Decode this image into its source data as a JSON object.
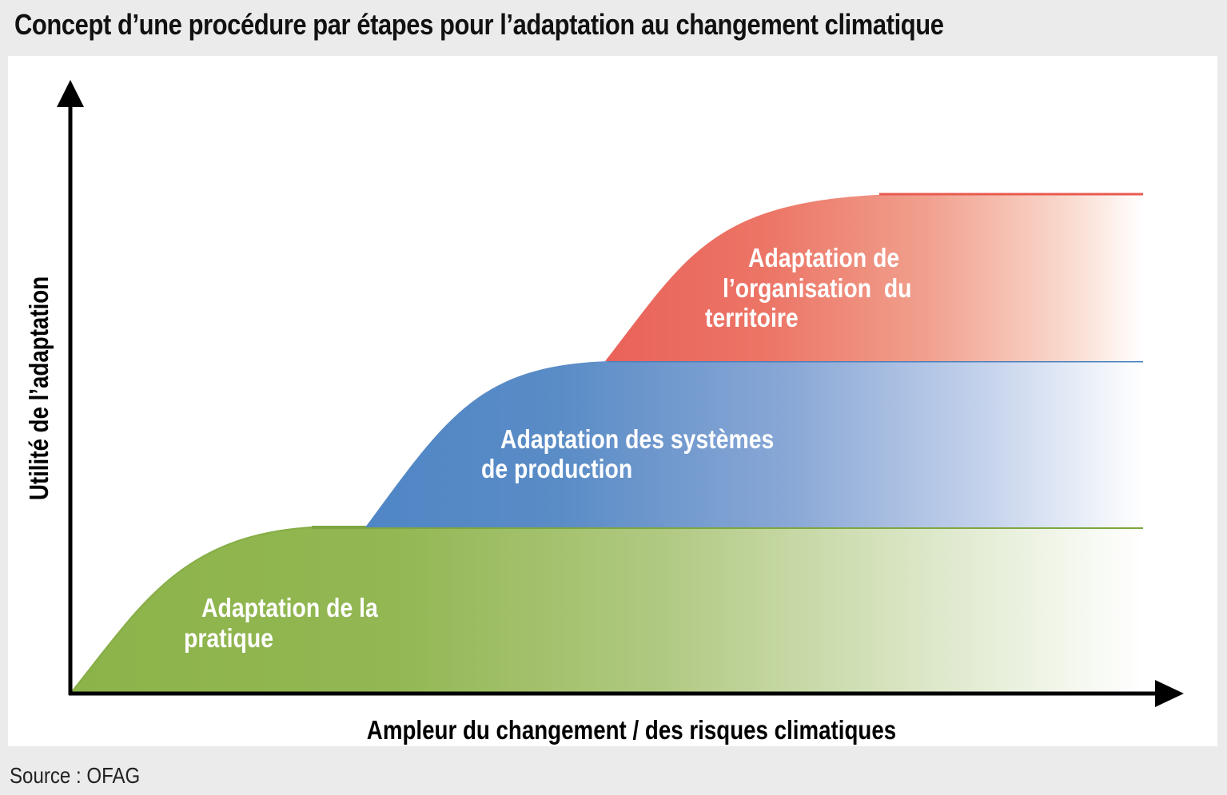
{
  "title": "Concept d’une procédure par étapes pour l’adaptation au changement climatique",
  "source": "Source : OFAG",
  "axes": {
    "y_label": "Utilité de l’adaptation",
    "x_label": "Ampleur du changement / des risques climatiques"
  },
  "stages": [
    {
      "name": "practice",
      "label_lines": [
        "Adaptation de la",
        "pratique"
      ],
      "color": "#8cb34a"
    },
    {
      "name": "production-systems",
      "label_lines": [
        "Adaptation des systèmes",
        "de production"
      ],
      "color": "#4f86c5"
    },
    {
      "name": "spatial-planning",
      "label_lines": [
        "Adaptation de",
        "l’organisation  du",
        "territoire"
      ],
      "color": "#ea6c5e"
    }
  ]
}
